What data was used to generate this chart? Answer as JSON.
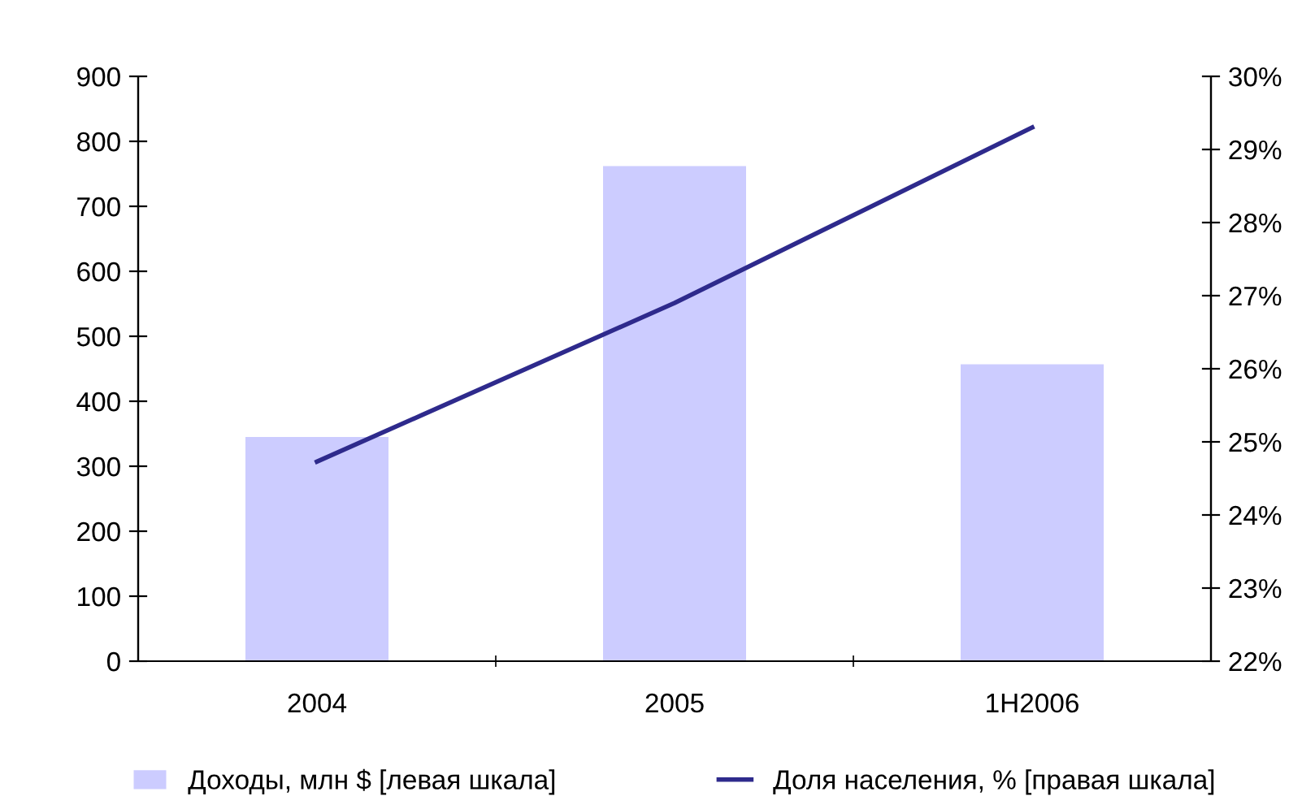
{
  "chart_data": {
    "type": "bar",
    "categories": [
      "2004",
      "2005",
      "1H2006"
    ],
    "series": [
      {
        "name": "Доходы, млн $ [левая шкала]",
        "color": "#ccccff",
        "values": [
          345,
          762,
          457
        ]
      },
      {
        "name": "Доля населения, % [правая шкала]",
        "type": "line",
        "axis": "y2",
        "color": "#2e2a8c",
        "values": [
          24.73,
          26.9,
          29.3
        ]
      }
    ],
    "ylim": [
      0,
      900
    ],
    "yticks": [
      0,
      100,
      200,
      300,
      400,
      500,
      600,
      700,
      800,
      900
    ],
    "y2lim": [
      22,
      30
    ],
    "y2ticks": [
      {
        "value": 22,
        "label": "22%"
      },
      {
        "value": 23,
        "label": "23%"
      },
      {
        "value": 24,
        "label": "24%"
      },
      {
        "value": 25,
        "label": "25%"
      },
      {
        "value": 26,
        "label": "26%"
      },
      {
        "value": 27,
        "label": "27%"
      },
      {
        "value": 28,
        "label": "28%"
      },
      {
        "value": 29,
        "label": "29%"
      },
      {
        "value": 30,
        "label": "30%"
      }
    ],
    "grid": false,
    "legend": "bottom",
    "marker": "none",
    "line_style": "solid"
  }
}
